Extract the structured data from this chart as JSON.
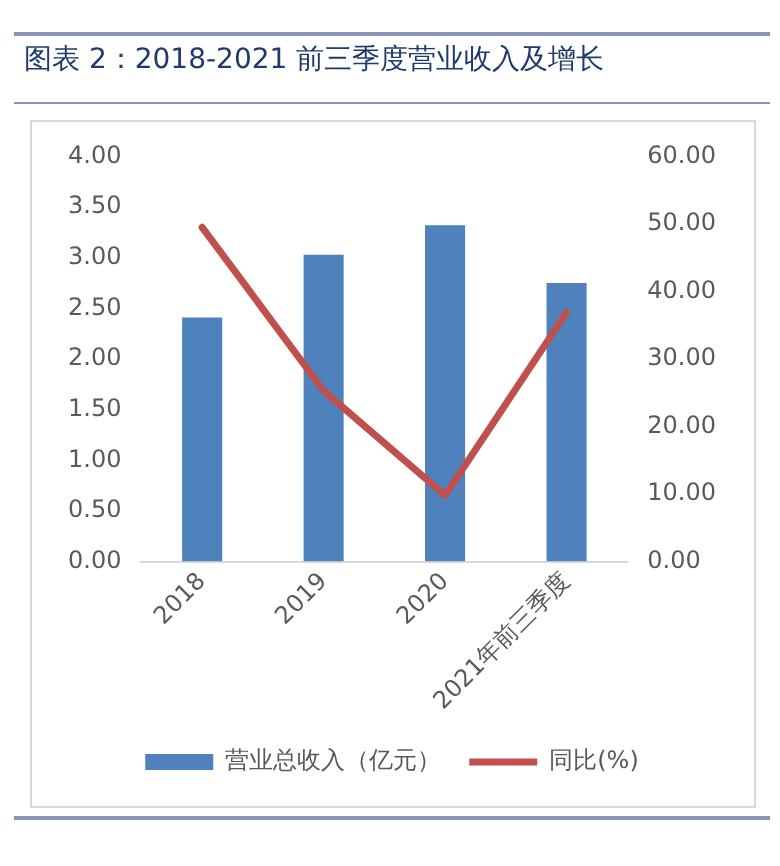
{
  "chart_data": {
    "type": "bar",
    "title": "图表 2：2018-2021 前三季度营业收入及增长",
    "categories": [
      "2018",
      "2019",
      "2020",
      "2021年前三季度"
    ],
    "series": [
      {
        "name": "营业总收入（亿元）",
        "color": "#4f81bd",
        "values": [
          2.41,
          3.03,
          3.32,
          2.75
        ]
      },
      {
        "name": "同比(%)",
        "type": "line",
        "axis": "y2",
        "color": "#c0504d",
        "values": [
          49.5,
          25.3,
          9.8,
          36.9
        ]
      }
    ],
    "ylim": [
      0,
      4
    ],
    "yticks": [
      {
        "value": 0,
        "label": "0.00"
      },
      {
        "value": 0.5,
        "label": "0.50"
      },
      {
        "value": 1,
        "label": "1.00"
      },
      {
        "value": 1.5,
        "label": "1.50"
      },
      {
        "value": 2,
        "label": "2.00"
      },
      {
        "value": 2.5,
        "label": "2.50"
      },
      {
        "value": 3,
        "label": "3.00"
      },
      {
        "value": 3.5,
        "label": "3.50"
      },
      {
        "value": 4,
        "label": "4.00"
      }
    ],
    "y2lim": [
      0,
      60
    ],
    "y2ticks": [
      {
        "value": 0,
        "label": "0.00"
      },
      {
        "value": 10,
        "label": "10.00"
      },
      {
        "value": 20,
        "label": "20.00"
      },
      {
        "value": 30,
        "label": "30.00"
      },
      {
        "value": 40,
        "label": "40.00"
      },
      {
        "value": 50,
        "label": "50.00"
      },
      {
        "value": 60,
        "label": "60.00"
      }
    ],
    "grid": false,
    "legend": "bottom",
    "marker": "none",
    "line_style": "solid"
  }
}
